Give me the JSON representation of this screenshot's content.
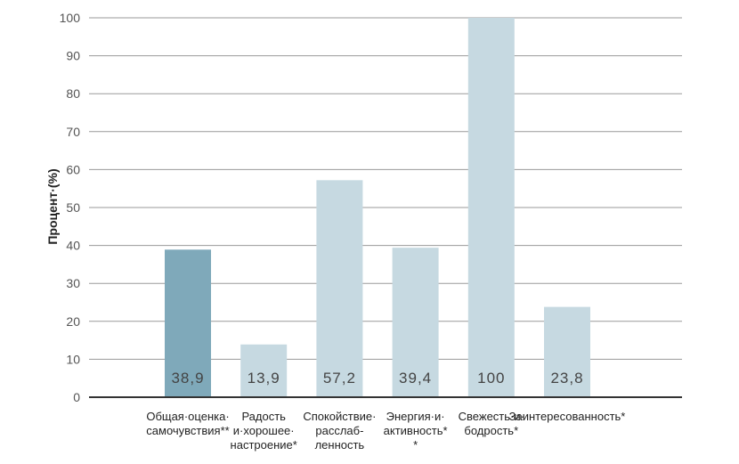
{
  "chart_data": {
    "type": "bar",
    "ylabel": "Процент·(%)",
    "ylim": [
      0,
      100
    ],
    "yticks": [
      0,
      10,
      20,
      30,
      40,
      50,
      60,
      70,
      80,
      90,
      100
    ],
    "grid": true,
    "categories": [
      [
        "Общая·оценка·",
        "самочувствия**"
      ],
      [
        "Радость",
        "и·хорошее·",
        "настроение*"
      ],
      [
        "Спокойствие·",
        "расслаб-",
        "ленность"
      ],
      [
        "Энергия·и·",
        "активность*",
        "*"
      ],
      [
        "Свежесть·и·",
        "бодрость*"
      ],
      [
        "Заинтересованность*"
      ]
    ],
    "values": [
      38.9,
      13.9,
      57.2,
      39.4,
      100,
      23.8
    ],
    "value_labels": [
      "38,9",
      "13,9",
      "57,2",
      "39,4",
      "100",
      "23,8"
    ],
    "colors": {
      "highlight": "#7fa9ba",
      "bar": "#c6d9e1",
      "grid": "#9a9a9a",
      "axis": "#333333"
    },
    "highlight_index": 0
  }
}
